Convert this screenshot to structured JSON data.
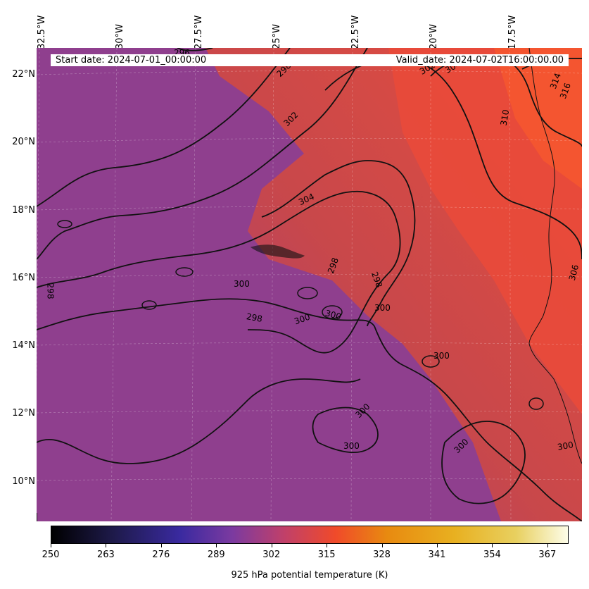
{
  "map": {
    "top_lon_labels": [
      "32.5°W",
      "30°W",
      "27.5°W",
      "25°W",
      "22.5°W",
      "20°W",
      "17.5°W"
    ],
    "lat_labels": [
      "22°N",
      "20°N",
      "18°N",
      "16°N",
      "14°N",
      "12°N",
      "10°N"
    ],
    "start_date": "Start date: 2024-07-01_00:00:00",
    "valid_date": "Valid_date: 2024-07-02T16:00:00.00",
    "contour_labels": [
      "296",
      "298",
      "302",
      "304",
      "300",
      "298",
      "298",
      "298",
      "300",
      "300",
      "300",
      "300",
      "300",
      "300",
      "300",
      "300",
      "306",
      "310",
      "314",
      "316",
      "298",
      "304",
      "302"
    ],
    "colors": {
      "cool_fill": "#8e3f8c",
      "warm_fill": "#ea4a3b",
      "land_fill": "#f0523a"
    }
  },
  "colorbar": {
    "title": "925 hPa potential temperature (K)",
    "ticks": [
      "250",
      "263",
      "276",
      "289",
      "302",
      "315",
      "328",
      "341",
      "354",
      "367"
    ],
    "range": [
      250,
      372
    ]
  }
}
